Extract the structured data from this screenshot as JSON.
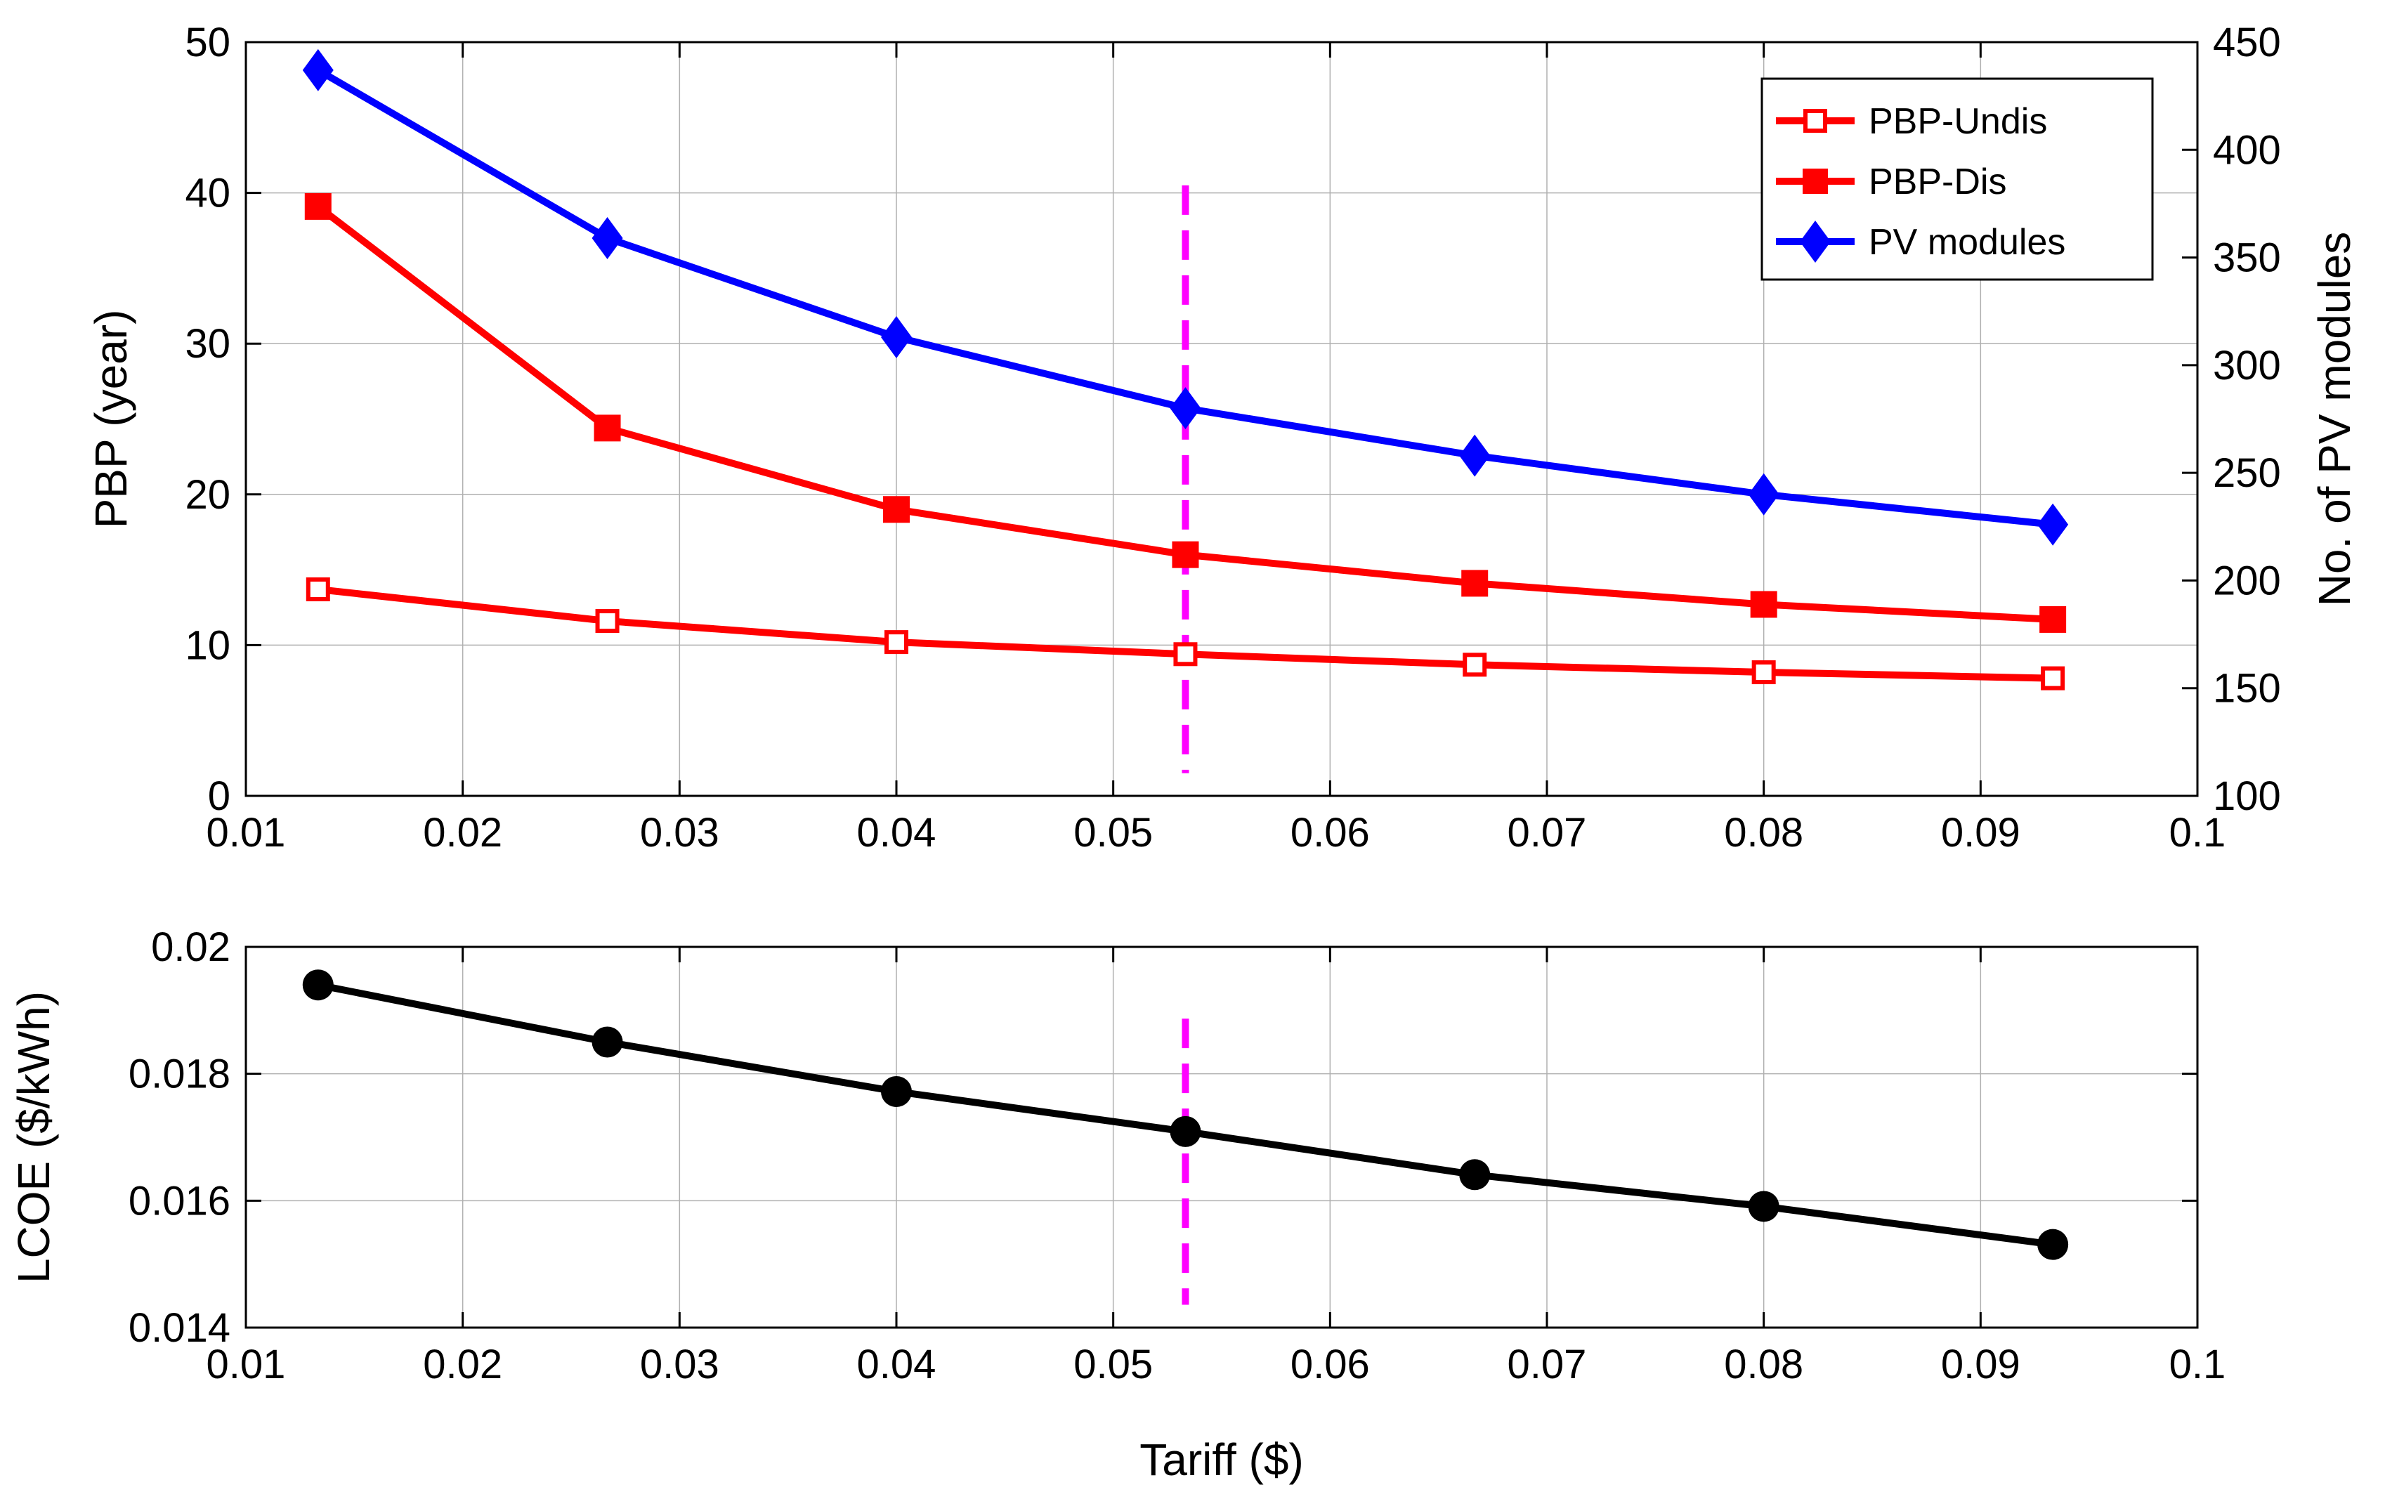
{
  "chart_data": [
    {
      "type": "line",
      "x": [
        0.01333,
        0.02667,
        0.04,
        0.05333,
        0.06667,
        0.08,
        0.09333
      ],
      "xlim": [
        0.01,
        0.1
      ],
      "xticks": [
        "0.01",
        "0.02",
        "0.03",
        "0.04",
        "0.05",
        "0.06",
        "0.07",
        "0.08",
        "0.09",
        "0.1"
      ],
      "xlabel": "",
      "ylabel": "PBP (year)",
      "ylim": [
        0,
        50
      ],
      "yticks": [
        "0",
        "10",
        "20",
        "30",
        "40",
        "50"
      ],
      "ylabel_right": "No. of PV modules",
      "ylim_right": [
        100,
        450
      ],
      "yticks_right": [
        "100",
        "150",
        "200",
        "250",
        "300",
        "350",
        "400",
        "450"
      ],
      "grid": true,
      "legend_position": "top-right",
      "series": [
        {
          "name": "PBP-Undis",
          "axis": "left",
          "color": "#ff0000",
          "marker": "open-square",
          "values": [
            13.7,
            11.6,
            10.2,
            9.4,
            8.7,
            8.2,
            7.8
          ]
        },
        {
          "name": "PBP-Dis",
          "axis": "left",
          "color": "#ff0000",
          "marker": "filled-square",
          "values": [
            39.1,
            24.4,
            19.0,
            16.0,
            14.1,
            12.7,
            11.7
          ]
        },
        {
          "name": "PV modules",
          "axis": "right",
          "color": "#0000ff",
          "marker": "filled-diamond",
          "values": [
            437,
            359,
            313,
            280,
            258,
            240,
            226
          ]
        }
      ],
      "reference_line": {
        "x": 0.05333,
        "color": "#ff00ff",
        "style": "dashed",
        "y_from": 1.5,
        "y_to": 40.5
      }
    },
    {
      "type": "line",
      "x": [
        0.01333,
        0.02667,
        0.04,
        0.05333,
        0.06667,
        0.08,
        0.09333
      ],
      "xlim": [
        0.01,
        0.1
      ],
      "xticks": [
        "0.01",
        "0.02",
        "0.03",
        "0.04",
        "0.05",
        "0.06",
        "0.07",
        "0.08",
        "0.09",
        "0.1"
      ],
      "xlabel": "Tariff ($)",
      "ylabel": "LCOE ($/kWh)",
      "ylim": [
        0.014,
        0.02
      ],
      "yticks": [
        "0.014",
        "0.016",
        "0.018",
        "0.02"
      ],
      "grid": true,
      "series": [
        {
          "name": "LCOE",
          "color": "#000000",
          "marker": "filled-circle",
          "values": [
            0.0194,
            0.0185,
            0.01772,
            0.01709,
            0.01641,
            0.01591,
            0.01531
          ]
        }
      ],
      "reference_line": {
        "x": 0.05333,
        "color": "#ff00ff",
        "style": "dashed",
        "y_from": 0.01436,
        "y_to": 0.01887
      }
    }
  ]
}
